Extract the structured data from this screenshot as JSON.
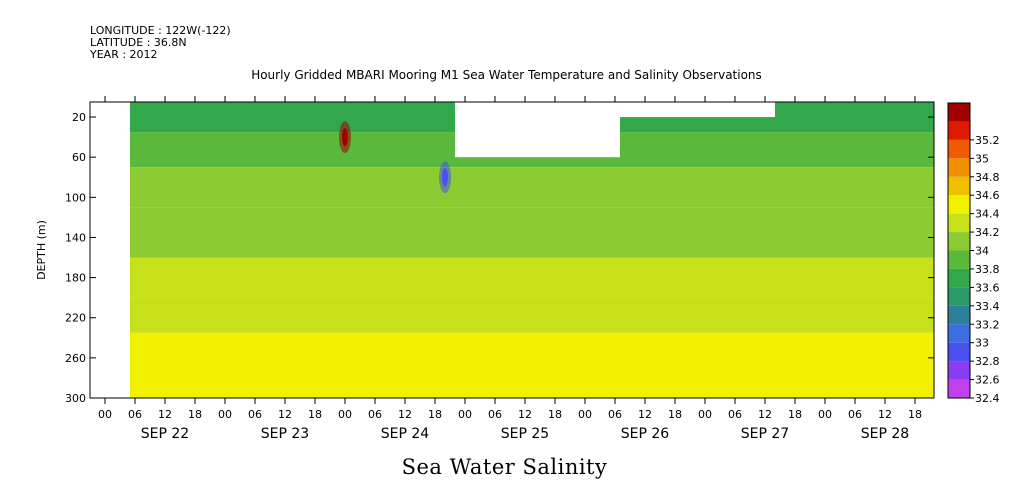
{
  "meta": {
    "longitude": "LONGITUDE : 122W(-122)",
    "latitude": "LATITUDE : 36.8N",
    "year": "YEAR : 2012"
  },
  "chart_data": {
    "type": "heatmap",
    "title": "Hourly Gridded MBARI Mooring M1 Sea Water Temperature and Salinity Observations",
    "variable": "Sea Water Salinity",
    "ylabel": "DEPTH (m)",
    "ylim": [
      300,
      5
    ],
    "y_inverted": true,
    "y_ticks": [
      20,
      60,
      100,
      140,
      180,
      220,
      260,
      300
    ],
    "x_range_hours": [
      "SEP 21 21:00",
      "SEP 28 23:00"
    ],
    "x_hour_ticks": [
      "00",
      "06",
      "12",
      "18",
      "00",
      "06",
      "12",
      "18",
      "00",
      "06",
      "12",
      "18",
      "00",
      "06",
      "12",
      "18",
      "00",
      "06",
      "12",
      "18",
      "00",
      "06",
      "12",
      "18",
      "00",
      "06",
      "12",
      "18",
      "00",
      "06",
      "12",
      "18"
    ],
    "x_day_labels": [
      "SEP 22",
      "SEP 23",
      "SEP 24",
      "SEP 25",
      "SEP 26",
      "SEP 27",
      "SEP 28"
    ],
    "colorbar": {
      "levels": [
        32.4,
        32.6,
        32.8,
        33,
        33.2,
        33.4,
        33.6,
        33.8,
        34,
        34.2,
        34.4,
        34.6,
        34.8,
        35,
        35.2
      ],
      "label_levels": [
        "32.4",
        "32.6",
        "32.8",
        "33",
        "33.2",
        "33.4",
        "33.6",
        "33.8",
        "34",
        "34.2",
        "34.4",
        "34.6",
        "34.8",
        "35",
        "35.2"
      ],
      "colors": [
        "#c040f0",
        "#8a3cf0",
        "#4a50f0",
        "#3d6ee0",
        "#2e7f9a",
        "#2a9a6a",
        "#33a84a",
        "#5ab83a",
        "#8ccc32",
        "#c6e01a",
        "#f0f000",
        "#f0c000",
        "#f09000",
        "#f05a00",
        "#e01a00",
        "#a00000"
      ]
    },
    "missing_data": [
      {
        "day_start": "SEP 24 22:00",
        "day_end": "SEP 26 07:00",
        "depth_top": 5,
        "depth_bottom": 60
      },
      {
        "day_start": "SEP 26 07:00",
        "day_end": "SEP 27 14:00",
        "depth_top": 5,
        "depth_bottom": 20
      }
    ],
    "anomalies": [
      {
        "time": "SEP 24 00:00",
        "depth": 40,
        "salinity": 35.2
      },
      {
        "time": "SEP 24 20:00",
        "depth": 80,
        "salinity": 32.6
      }
    ],
    "layers_by_depth": [
      {
        "depth_range": [
          5,
          35
        ],
        "salinity": 33.5
      },
      {
        "depth_range": [
          35,
          70
        ],
        "salinity": 33.6
      },
      {
        "depth_range": [
          70,
          110
        ],
        "salinity": 33.8
      },
      {
        "depth_range": [
          110,
          160
        ],
        "salinity": 33.9
      },
      {
        "depth_range": [
          160,
          200
        ],
        "salinity": 34.0
      },
      {
        "depth_range": [
          200,
          235
        ],
        "salinity": 34.1
      },
      {
        "depth_range": [
          235,
          300
        ],
        "salinity": 34.2
      }
    ]
  }
}
